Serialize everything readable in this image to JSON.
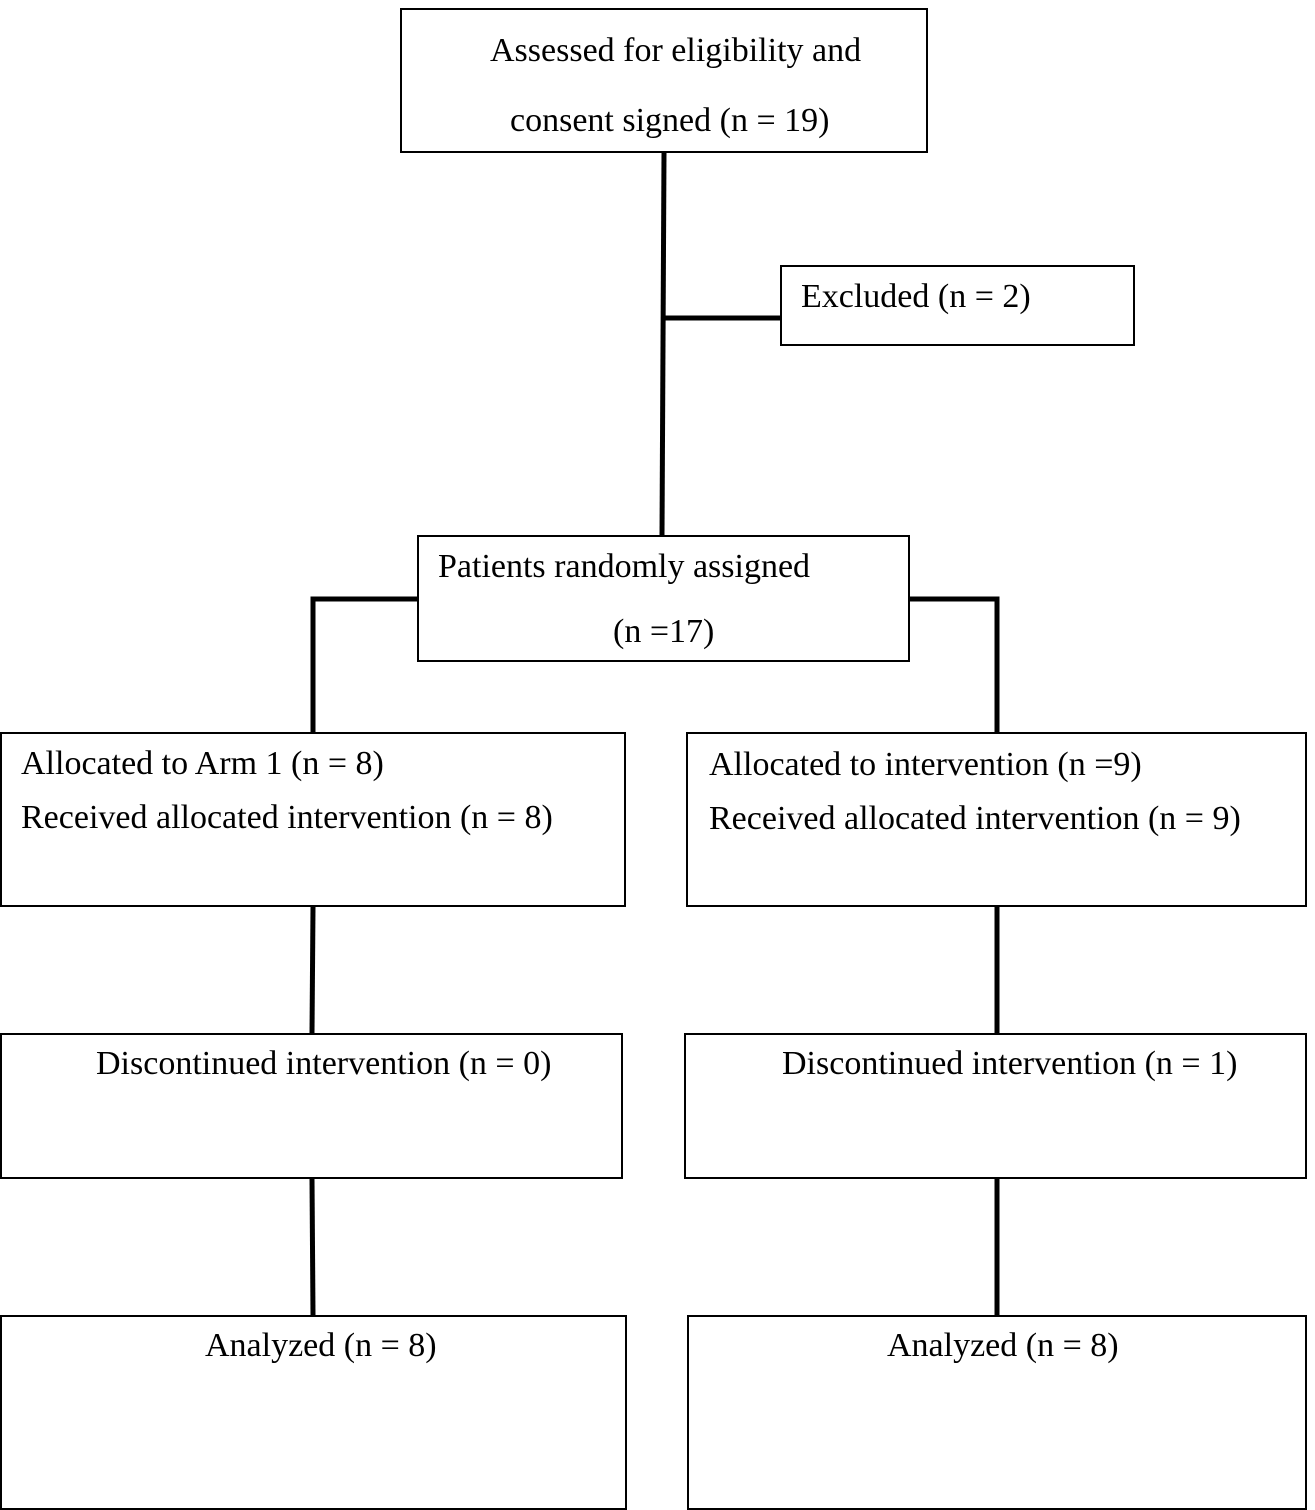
{
  "flowchart": {
    "assessed": {
      "line1": "Assessed for eligibility and",
      "line2": "consent signed (n = 19)"
    },
    "excluded": {
      "line1": "Excluded (n = 2)"
    },
    "randomized": {
      "line1": "Patients randomly assigned",
      "line2": "(n =17)"
    },
    "left_arm": {
      "allocated": "Allocated to Arm 1 (n = 8)",
      "received": "Received allocated intervention (n = 8)",
      "discontinued": "Discontinued intervention (n = 0)",
      "analyzed": "Analyzed (n = 8)"
    },
    "right_arm": {
      "allocated": "Allocated to intervention (n =9)",
      "received": "Received allocated intervention (n = 9)",
      "discontinued": "Discontinued intervention (n = 1)",
      "analyzed": "Analyzed (n = 8)"
    }
  }
}
